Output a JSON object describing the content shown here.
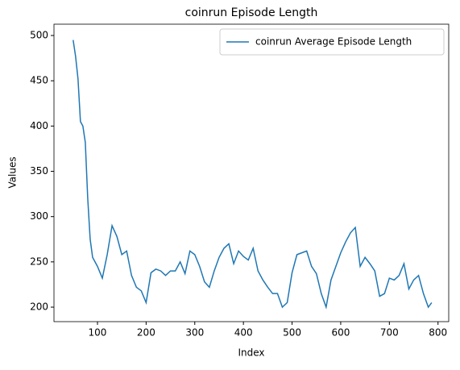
{
  "chart_data": {
    "type": "line",
    "title": "coinrun Episode Length",
    "xlabel": "Index",
    "ylabel": "Values",
    "x": [
      50,
      55,
      60,
      65,
      70,
      75,
      80,
      85,
      90,
      100,
      110,
      120,
      130,
      140,
      150,
      160,
      170,
      180,
      190,
      200,
      210,
      220,
      230,
      240,
      250,
      260,
      270,
      280,
      290,
      300,
      310,
      320,
      330,
      340,
      350,
      360,
      370,
      380,
      390,
      400,
      410,
      420,
      430,
      440,
      450,
      460,
      470,
      480,
      490,
      500,
      510,
      520,
      530,
      540,
      550,
      560,
      570,
      580,
      590,
      600,
      610,
      620,
      630,
      640,
      650,
      660,
      670,
      680,
      690,
      700,
      710,
      720,
      730,
      740,
      750,
      760,
      770,
      780,
      787
    ],
    "series": [
      {
        "name": "coinrun Average Episode Length",
        "color": "#1f77b4",
        "values": [
          495,
          477,
          452,
          405,
          400,
          382,
          320,
          275,
          255,
          245,
          232,
          258,
          290,
          278,
          258,
          262,
          235,
          222,
          218,
          205,
          238,
          242,
          240,
          235,
          240,
          240,
          250,
          237,
          262,
          258,
          245,
          228,
          222,
          240,
          255,
          265,
          270,
          248,
          262,
          256,
          252,
          265,
          240,
          230,
          222,
          215,
          215,
          200,
          205,
          238,
          258,
          260,
          262,
          245,
          237,
          215,
          200,
          230,
          245,
          260,
          272,
          282,
          288,
          245,
          255,
          248,
          240,
          212,
          215,
          232,
          230,
          235,
          248,
          220,
          230,
          235,
          215,
          200,
          205
        ]
      }
    ],
    "xlim": [
      10.6,
      822
    ],
    "ylim": [
      184,
      512.5
    ],
    "xticks": [
      100,
      200,
      300,
      400,
      500,
      600,
      700,
      800
    ],
    "yticks": [
      200,
      250,
      300,
      350,
      400,
      450,
      500
    ],
    "legend": "upper right"
  }
}
